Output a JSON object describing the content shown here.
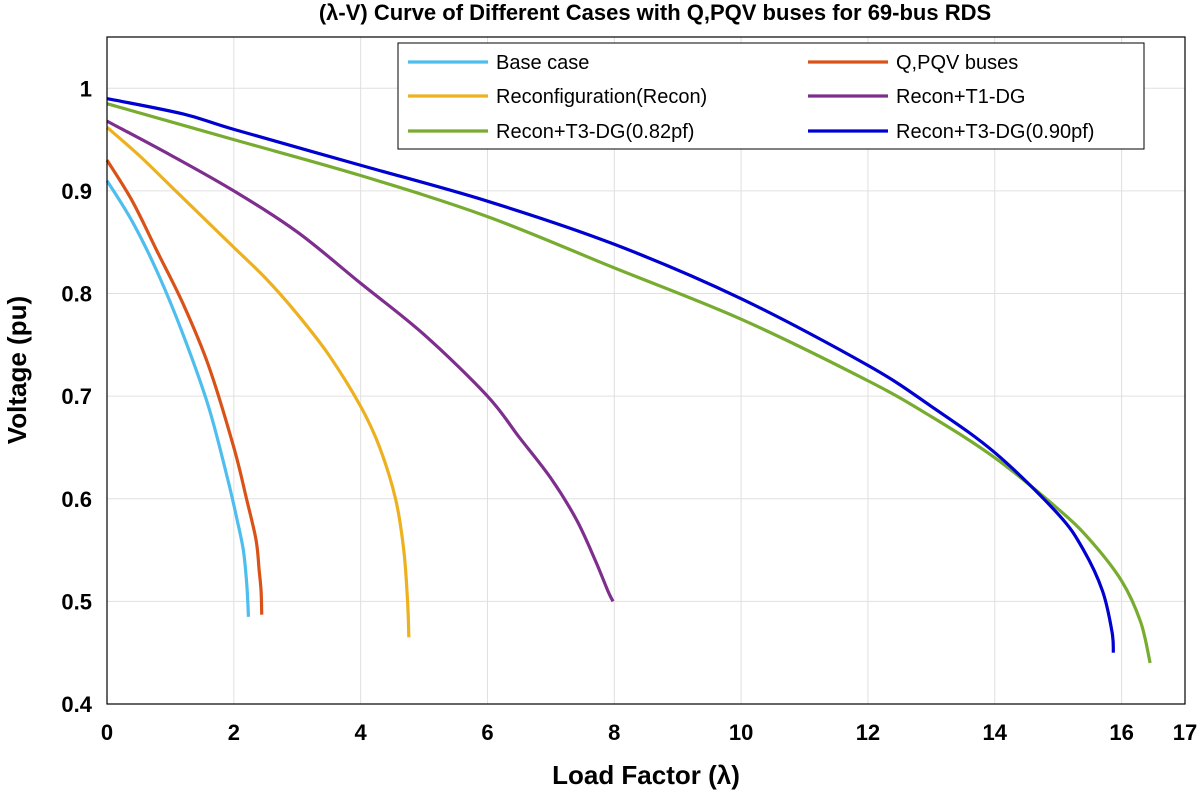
{
  "chart_data": {
    "type": "line",
    "title": "(λ-V) Curve of Different Cases with Q,PQV buses for 69-bus RDS",
    "xlabel": "Load Factor (λ)",
    "ylabel": "Voltage (pu)",
    "xlim": [
      0,
      17
    ],
    "ylim": [
      0.4,
      1.05
    ],
    "xticks": [
      0,
      2,
      4,
      6,
      8,
      10,
      12,
      14,
      16,
      17
    ],
    "yticks": [
      0.4,
      0.5,
      0.6,
      0.7,
      0.8,
      0.9,
      1
    ],
    "grid": true,
    "legend_position": "top-right",
    "series": [
      {
        "name": "Base case",
        "color": "#4DBEEE",
        "x": [
          0,
          0.4,
          0.8,
          1.2,
          1.6,
          1.9,
          2.05,
          2.15,
          2.2,
          2.22,
          2.23
        ],
        "y": [
          0.91,
          0.87,
          0.82,
          0.76,
          0.69,
          0.62,
          0.58,
          0.55,
          0.52,
          0.5,
          0.485
        ]
      },
      {
        "name": "Q,PQV buses",
        "color": "#D95319",
        "x": [
          0,
          0.4,
          0.8,
          1.2,
          1.6,
          2.0,
          2.2,
          2.35,
          2.4,
          2.43,
          2.44
        ],
        "y": [
          0.93,
          0.89,
          0.84,
          0.79,
          0.73,
          0.65,
          0.6,
          0.56,
          0.53,
          0.51,
          0.487
        ]
      },
      {
        "name": "Reconfiguration(Recon)",
        "color": "#EDB120",
        "x": [
          0,
          0.5,
          1,
          1.5,
          2,
          2.5,
          3,
          3.5,
          4,
          4.3,
          4.55,
          4.68,
          4.74,
          4.76
        ],
        "y": [
          0.962,
          0.935,
          0.905,
          0.875,
          0.845,
          0.815,
          0.78,
          0.74,
          0.69,
          0.65,
          0.6,
          0.55,
          0.5,
          0.465
        ]
      },
      {
        "name": "Recon+T1-DG",
        "color": "#7E2F8E",
        "x": [
          0,
          1,
          2,
          3,
          4,
          5,
          6,
          6.5,
          7,
          7.4,
          7.7,
          7.9,
          7.98
        ],
        "y": [
          0.968,
          0.935,
          0.9,
          0.86,
          0.81,
          0.76,
          0.7,
          0.66,
          0.62,
          0.58,
          0.54,
          0.51,
          0.5
        ]
      },
      {
        "name": "Recon+T3-DG(0.82pf)",
        "color": "#77AC30",
        "x": [
          0,
          2,
          4,
          6,
          8,
          10,
          12,
          13,
          14,
          15,
          15.5,
          16,
          16.3,
          16.45
        ],
        "y": [
          0.985,
          0.95,
          0.915,
          0.875,
          0.825,
          0.775,
          0.715,
          0.68,
          0.64,
          0.59,
          0.56,
          0.52,
          0.48,
          0.44
        ]
      },
      {
        "name": "Recon+T3-DG(0.90pf)",
        "color": "#0000D0",
        "x": [
          0,
          1.2,
          2,
          4,
          6,
          8,
          10,
          12,
          13,
          14,
          15,
          15.4,
          15.7,
          15.85,
          15.87
        ],
        "y": [
          0.99,
          0.975,
          0.96,
          0.925,
          0.89,
          0.848,
          0.795,
          0.73,
          0.69,
          0.645,
          0.585,
          0.55,
          0.51,
          0.47,
          0.45
        ]
      }
    ]
  }
}
